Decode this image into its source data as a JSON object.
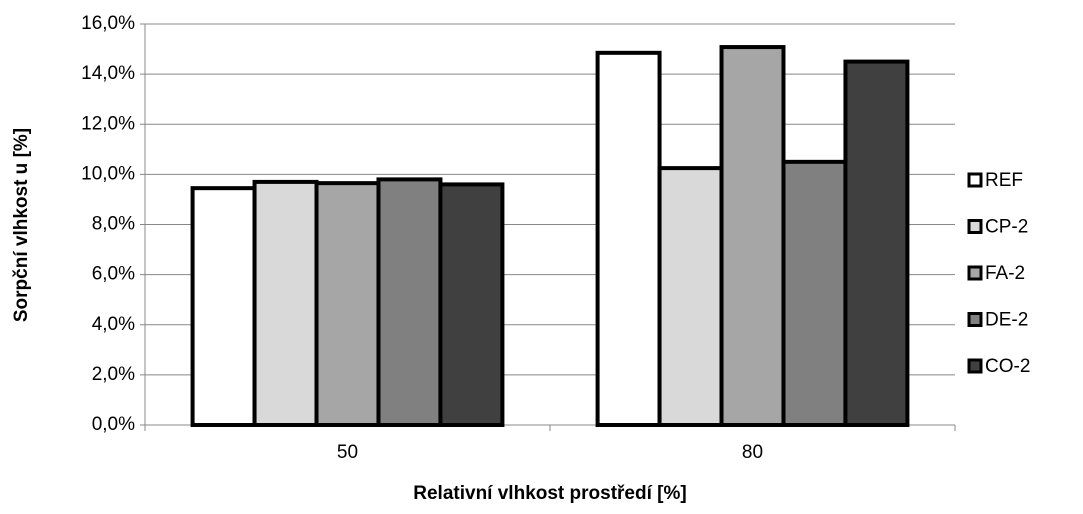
{
  "chart_data": {
    "type": "bar",
    "x_label": "Relativní vlhkost prostředí [%]",
    "y_label": "Sorpční vlhkost u [%]",
    "categories": [
      "50",
      "80"
    ],
    "series": [
      {
        "name": "REF",
        "color": "#ffffff",
        "values": [
          9.45,
          14.85
        ]
      },
      {
        "name": "CP-2",
        "color": "#d9d9d9",
        "values": [
          9.7,
          10.25
        ]
      },
      {
        "name": "FA-2",
        "color": "#a6a6a6",
        "values": [
          9.65,
          15.08
        ]
      },
      {
        "name": "DE-2",
        "color": "#808080",
        "values": [
          9.8,
          10.5
        ]
      },
      {
        "name": "CO-2",
        "color": "#404040",
        "values": [
          9.6,
          14.5
        ]
      }
    ],
    "ylim": [
      0,
      16
    ],
    "yticks": [
      {
        "value": 0,
        "label": "0,0%"
      },
      {
        "value": 2,
        "label": "2,0%"
      },
      {
        "value": 4,
        "label": "4,0%"
      },
      {
        "value": 6,
        "label": "6,0%"
      },
      {
        "value": 8,
        "label": "8,0%"
      },
      {
        "value": 10,
        "label": "10,0%"
      },
      {
        "value": 12,
        "label": "12,0%"
      },
      {
        "value": 14,
        "label": "14,0%"
      },
      {
        "value": 16,
        "label": "16,0%"
      }
    ],
    "grid": true,
    "legend": "right"
  }
}
